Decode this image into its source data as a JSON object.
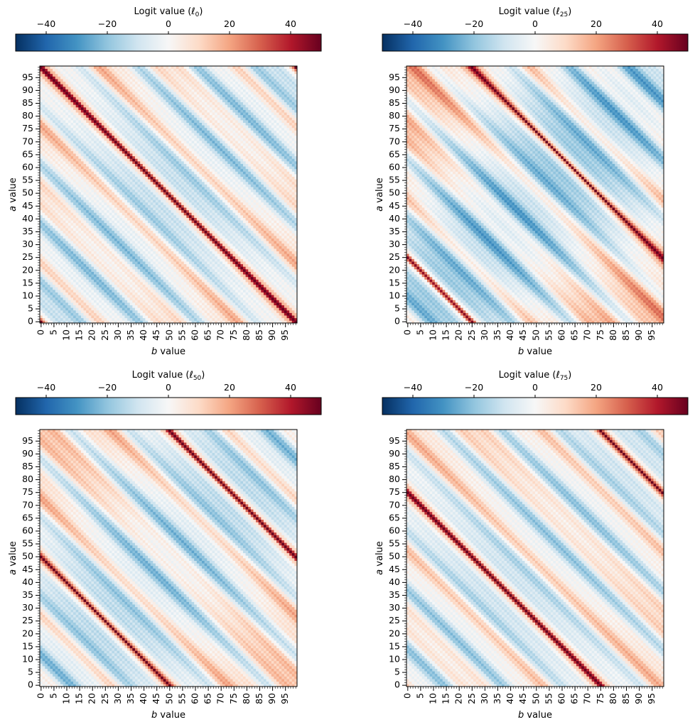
{
  "figure": {
    "colormap": "RdBu_r",
    "colormap_stops": [
      "#053061",
      "#2166ac",
      "#4393c3",
      "#92c5de",
      "#d1e5f0",
      "#f7f7f7",
      "#fddbc7",
      "#f4a582",
      "#d6604d",
      "#b2182b",
      "#67001f"
    ],
    "colorbar_range": [
      -50,
      50
    ],
    "colorbar_ticks": [
      "−40",
      "−20",
      "0",
      "20",
      "40"
    ],
    "colorbar_tick_values": [
      -40,
      -20,
      0,
      20,
      40
    ],
    "axis_tick_values": [
      0,
      5,
      10,
      15,
      20,
      25,
      30,
      35,
      40,
      45,
      50,
      55,
      60,
      65,
      70,
      75,
      80,
      85,
      90,
      95
    ],
    "axis_tick_labels": [
      "0",
      "5",
      "10",
      "15",
      "20",
      "25",
      "30",
      "35",
      "40",
      "45",
      "50",
      "55",
      "60",
      "65",
      "70",
      "75",
      "80",
      "85",
      "90",
      "95"
    ],
    "axis_range": [
      0,
      99
    ]
  },
  "chart_data": [
    {
      "type": "heatmap",
      "colorbar_title_prefix": "Logit value (",
      "colorbar_title_symbol": "ℓ",
      "colorbar_title_sub": "0",
      "colorbar_title_suffix": ")",
      "xlabel_italic": "b",
      "xlabel": " value",
      "ylabel_italic": "a",
      "ylabel": " value",
      "x_range": [
        0,
        99
      ],
      "y_range": [
        0,
        99
      ],
      "target_class": 0,
      "description_values": {
        "peak_on_diagonal_mod": 0,
        "peak_value": 40,
        "wrap_value": -15
      }
    },
    {
      "type": "heatmap",
      "colorbar_title_prefix": "Logit value (",
      "colorbar_title_symbol": "ℓ",
      "colorbar_title_sub": "25",
      "colorbar_title_suffix": ")",
      "xlabel_italic": "b",
      "xlabel": " value",
      "ylabel_italic": "a",
      "ylabel": " value",
      "x_range": [
        0,
        99
      ],
      "y_range": [
        0,
        99
      ],
      "target_class": 25,
      "description_values": {
        "peak_value": 40,
        "wrap_value": -35
      }
    },
    {
      "type": "heatmap",
      "colorbar_title_prefix": "Logit value (",
      "colorbar_title_symbol": "ℓ",
      "colorbar_title_sub": "50",
      "colorbar_title_suffix": ")",
      "xlabel_italic": "b",
      "xlabel": " value",
      "ylabel_italic": "a",
      "ylabel": " value",
      "x_range": [
        0,
        99
      ],
      "y_range": [
        0,
        99
      ],
      "target_class": 50,
      "description_values": {
        "peak_value": 40,
        "wrap_value": -20
      }
    },
    {
      "type": "heatmap",
      "colorbar_title_prefix": "Logit value (",
      "colorbar_title_symbol": "ℓ",
      "colorbar_title_sub": "75",
      "colorbar_title_suffix": ")",
      "xlabel_italic": "b",
      "xlabel": " value",
      "ylabel_italic": "a",
      "ylabel": " value",
      "x_range": [
        0,
        99
      ],
      "y_range": [
        0,
        99
      ],
      "target_class": 75,
      "description_values": {
        "peak_value": 40,
        "wrap_value": -10
      }
    }
  ]
}
